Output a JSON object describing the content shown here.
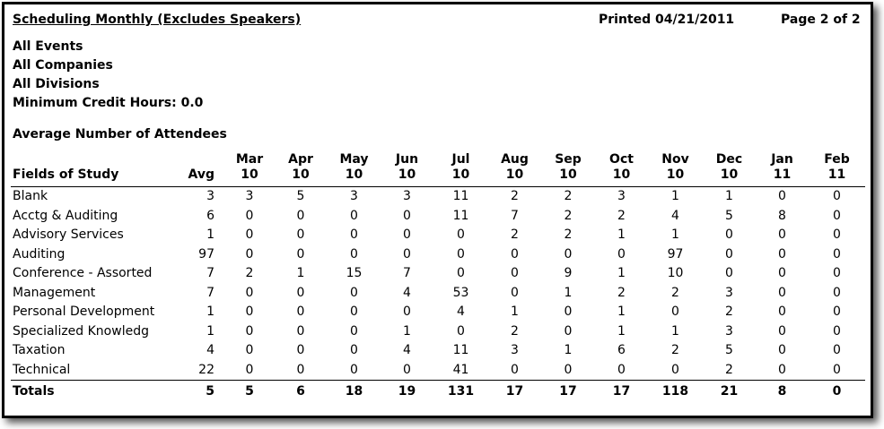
{
  "report": {
    "title": "Scheduling Monthly (Excludes Speakers)",
    "printed": "Printed 04/21/2011",
    "page": "Page 2 of 2"
  },
  "filters": [
    "All Events",
    "All Companies",
    "All Divisions",
    "Minimum Credit Hours: 0.0"
  ],
  "section_heading": "Average Number of Attendees",
  "table": {
    "headers": {
      "field": "Fields of Study",
      "avg": "Avg",
      "months": [
        {
          "month": "Mar",
          "year": "10"
        },
        {
          "month": "Apr",
          "year": "10"
        },
        {
          "month": "May",
          "year": "10"
        },
        {
          "month": "Jun",
          "year": "10"
        },
        {
          "month": "Jul",
          "year": "10"
        },
        {
          "month": "Aug",
          "year": "10"
        },
        {
          "month": "Sep",
          "year": "10"
        },
        {
          "month": "Oct",
          "year": "10"
        },
        {
          "month": "Nov",
          "year": "10"
        },
        {
          "month": "Dec",
          "year": "10"
        },
        {
          "month": "Jan",
          "year": "11"
        },
        {
          "month": "Feb",
          "year": "11"
        }
      ]
    },
    "rows": [
      {
        "field": "Blank",
        "avg": "3",
        "values": [
          "3",
          "5",
          "3",
          "3",
          "11",
          "2",
          "2",
          "3",
          "1",
          "1",
          "0",
          "0"
        ]
      },
      {
        "field": "Acctg & Auditing",
        "avg": "6",
        "values": [
          "0",
          "0",
          "0",
          "0",
          "11",
          "7",
          "2",
          "2",
          "4",
          "5",
          "8",
          "0"
        ]
      },
      {
        "field": "Advisory Services",
        "avg": "1",
        "values": [
          "0",
          "0",
          "0",
          "0",
          "0",
          "2",
          "2",
          "1",
          "1",
          "0",
          "0",
          "0"
        ]
      },
      {
        "field": "Auditing",
        "avg": "97",
        "values": [
          "0",
          "0",
          "0",
          "0",
          "0",
          "0",
          "0",
          "0",
          "97",
          "0",
          "0",
          "0"
        ]
      },
      {
        "field": "Conference - Assorted",
        "avg": "7",
        "values": [
          "2",
          "1",
          "15",
          "7",
          "0",
          "0",
          "9",
          "1",
          "10",
          "0",
          "0",
          "0"
        ]
      },
      {
        "field": "Management",
        "avg": "7",
        "values": [
          "0",
          "0",
          "0",
          "4",
          "53",
          "0",
          "1",
          "2",
          "2",
          "3",
          "0",
          "0"
        ]
      },
      {
        "field": "Personal Development",
        "avg": "1",
        "values": [
          "0",
          "0",
          "0",
          "0",
          "4",
          "1",
          "0",
          "1",
          "0",
          "2",
          "0",
          "0"
        ]
      },
      {
        "field": "Specialized Knowledg",
        "avg": "1",
        "values": [
          "0",
          "0",
          "0",
          "1",
          "0",
          "2",
          "0",
          "1",
          "1",
          "3",
          "0",
          "0"
        ]
      },
      {
        "field": "Taxation",
        "avg": "4",
        "values": [
          "0",
          "0",
          "0",
          "4",
          "11",
          "3",
          "1",
          "6",
          "2",
          "5",
          "0",
          "0"
        ]
      },
      {
        "field": "Technical",
        "avg": "22",
        "values": [
          "0",
          "0",
          "0",
          "0",
          "41",
          "0",
          "0",
          "0",
          "0",
          "2",
          "0",
          "0"
        ]
      }
    ],
    "totals": {
      "label": "Totals",
      "avg": "5",
      "values": [
        "5",
        "6",
        "18",
        "19",
        "131",
        "17",
        "17",
        "17",
        "118",
        "21",
        "8",
        "0"
      ]
    }
  }
}
